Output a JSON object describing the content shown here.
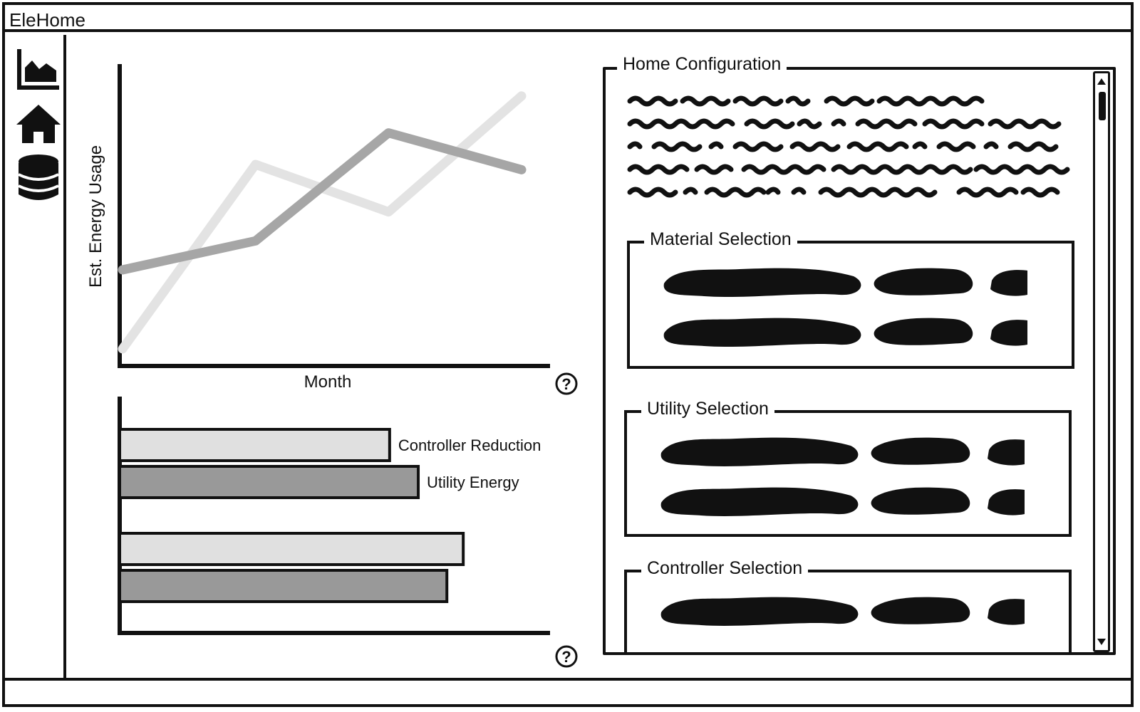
{
  "window": {
    "title": "EleHome"
  },
  "sidebar": {
    "items": [
      {
        "icon": "area-chart-icon"
      },
      {
        "icon": "home-icon"
      },
      {
        "icon": "database-icon"
      }
    ]
  },
  "line_chart_help": {
    "icon": "help-icon"
  },
  "bar_chart_help": {
    "icon": "help-icon"
  },
  "chart_data": [
    {
      "type": "line",
      "xlabel": "Month",
      "ylabel": "Est. Energy Usage",
      "x": [
        1,
        2,
        3,
        4
      ],
      "ylim": [
        0,
        100
      ],
      "series": [
        {
          "values": [
            0,
            70,
            52,
            96
          ],
          "color": "#e3e3e3"
        },
        {
          "values": [
            30,
            41,
            82,
            68
          ],
          "color": "#a6a6a6"
        }
      ]
    },
    {
      "type": "bar",
      "orientation": "horizontal",
      "xlim": [
        0,
        100
      ],
      "series": [
        {
          "name": "Controller Reduction",
          "values": [
            66,
            84
          ],
          "color": "#e0e0e0"
        },
        {
          "name": "Utility Energy",
          "values": [
            73,
            80
          ],
          "color": "#999999"
        }
      ]
    }
  ],
  "panel": {
    "title": "Home Configuration",
    "groups": [
      {
        "title": "Material Selection"
      },
      {
        "title": "Utility Selection"
      },
      {
        "title": "Controller Selection"
      }
    ]
  }
}
